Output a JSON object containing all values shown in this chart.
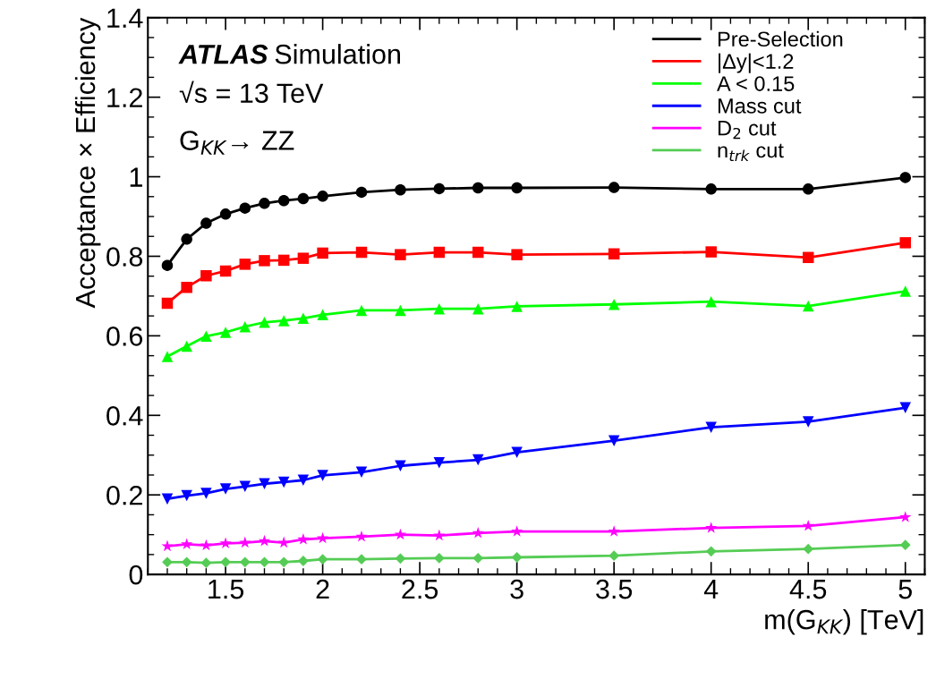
{
  "chart_data": {
    "type": "line",
    "xlabel": "m(G$_{KK}$) [TeV]",
    "ylabel": "Acceptance × Efficiency",
    "x": [
      1.2,
      1.3,
      1.4,
      1.5,
      1.6,
      1.7,
      1.8,
      1.9,
      2.0,
      2.2,
      2.4,
      2.6,
      2.8,
      3.0,
      3.5,
      4.0,
      4.5,
      5.0
    ],
    "series": [
      {
        "name": "Pre-Selection",
        "color": "#000000",
        "marker": "circle",
        "values": [
          0.777,
          0.843,
          0.883,
          0.906,
          0.921,
          0.933,
          0.94,
          0.945,
          0.951,
          0.961,
          0.967,
          0.97,
          0.972,
          0.972,
          0.973,
          0.969,
          0.969,
          0.998
        ]
      },
      {
        "name": "|Δy|<1.2",
        "color": "#ff0000",
        "marker": "square",
        "values": [
          0.682,
          0.722,
          0.751,
          0.763,
          0.78,
          0.789,
          0.79,
          0.795,
          0.808,
          0.81,
          0.804,
          0.81,
          0.81,
          0.804,
          0.806,
          0.811,
          0.797,
          0.834
        ]
      },
      {
        "name": "A < 0.15",
        "color": "#00ff00",
        "marker": "triangle",
        "values": [
          0.548,
          0.574,
          0.599,
          0.609,
          0.623,
          0.634,
          0.638,
          0.644,
          0.653,
          0.664,
          0.664,
          0.668,
          0.668,
          0.674,
          0.679,
          0.686,
          0.675,
          0.712
        ]
      },
      {
        "name": "Mass cut",
        "color": "#0000ff",
        "marker": "triangle_down",
        "values": [
          0.19,
          0.198,
          0.204,
          0.215,
          0.221,
          0.228,
          0.232,
          0.237,
          0.249,
          0.257,
          0.273,
          0.281,
          0.288,
          0.307,
          0.336,
          0.37,
          0.384,
          0.419
        ]
      },
      {
        "name": "D$_{2}$ cut",
        "color": "#ff00ff",
        "marker": "star",
        "values": [
          0.071,
          0.076,
          0.073,
          0.078,
          0.08,
          0.084,
          0.08,
          0.088,
          0.091,
          0.095,
          0.1,
          0.098,
          0.104,
          0.108,
          0.108,
          0.117,
          0.122,
          0.144
        ]
      },
      {
        "name": "n$_{trk}$ cut",
        "color": "#55cc55",
        "marker": "diamond",
        "values": [
          0.031,
          0.031,
          0.029,
          0.031,
          0.031,
          0.031,
          0.031,
          0.034,
          0.038,
          0.038,
          0.04,
          0.041,
          0.041,
          0.043,
          0.047,
          0.058,
          0.064,
          0.074
        ]
      }
    ],
    "xlim": [
      1.1,
      5.1
    ],
    "xticks": [
      1.5,
      2,
      2.5,
      3,
      3.5,
      4,
      4.5,
      5
    ],
    "ylim": [
      0,
      1.4
    ],
    "yticks": [
      0,
      0.2,
      0.4,
      0.6,
      0.8,
      1,
      1.2,
      1.4
    ],
    "annotations": [
      "ATLAS Simulation",
      "√s = 13 TeV",
      "G$_{KK}$→ ZZ"
    ],
    "grid": false,
    "legend": "top right",
    "line_style": "solid"
  }
}
